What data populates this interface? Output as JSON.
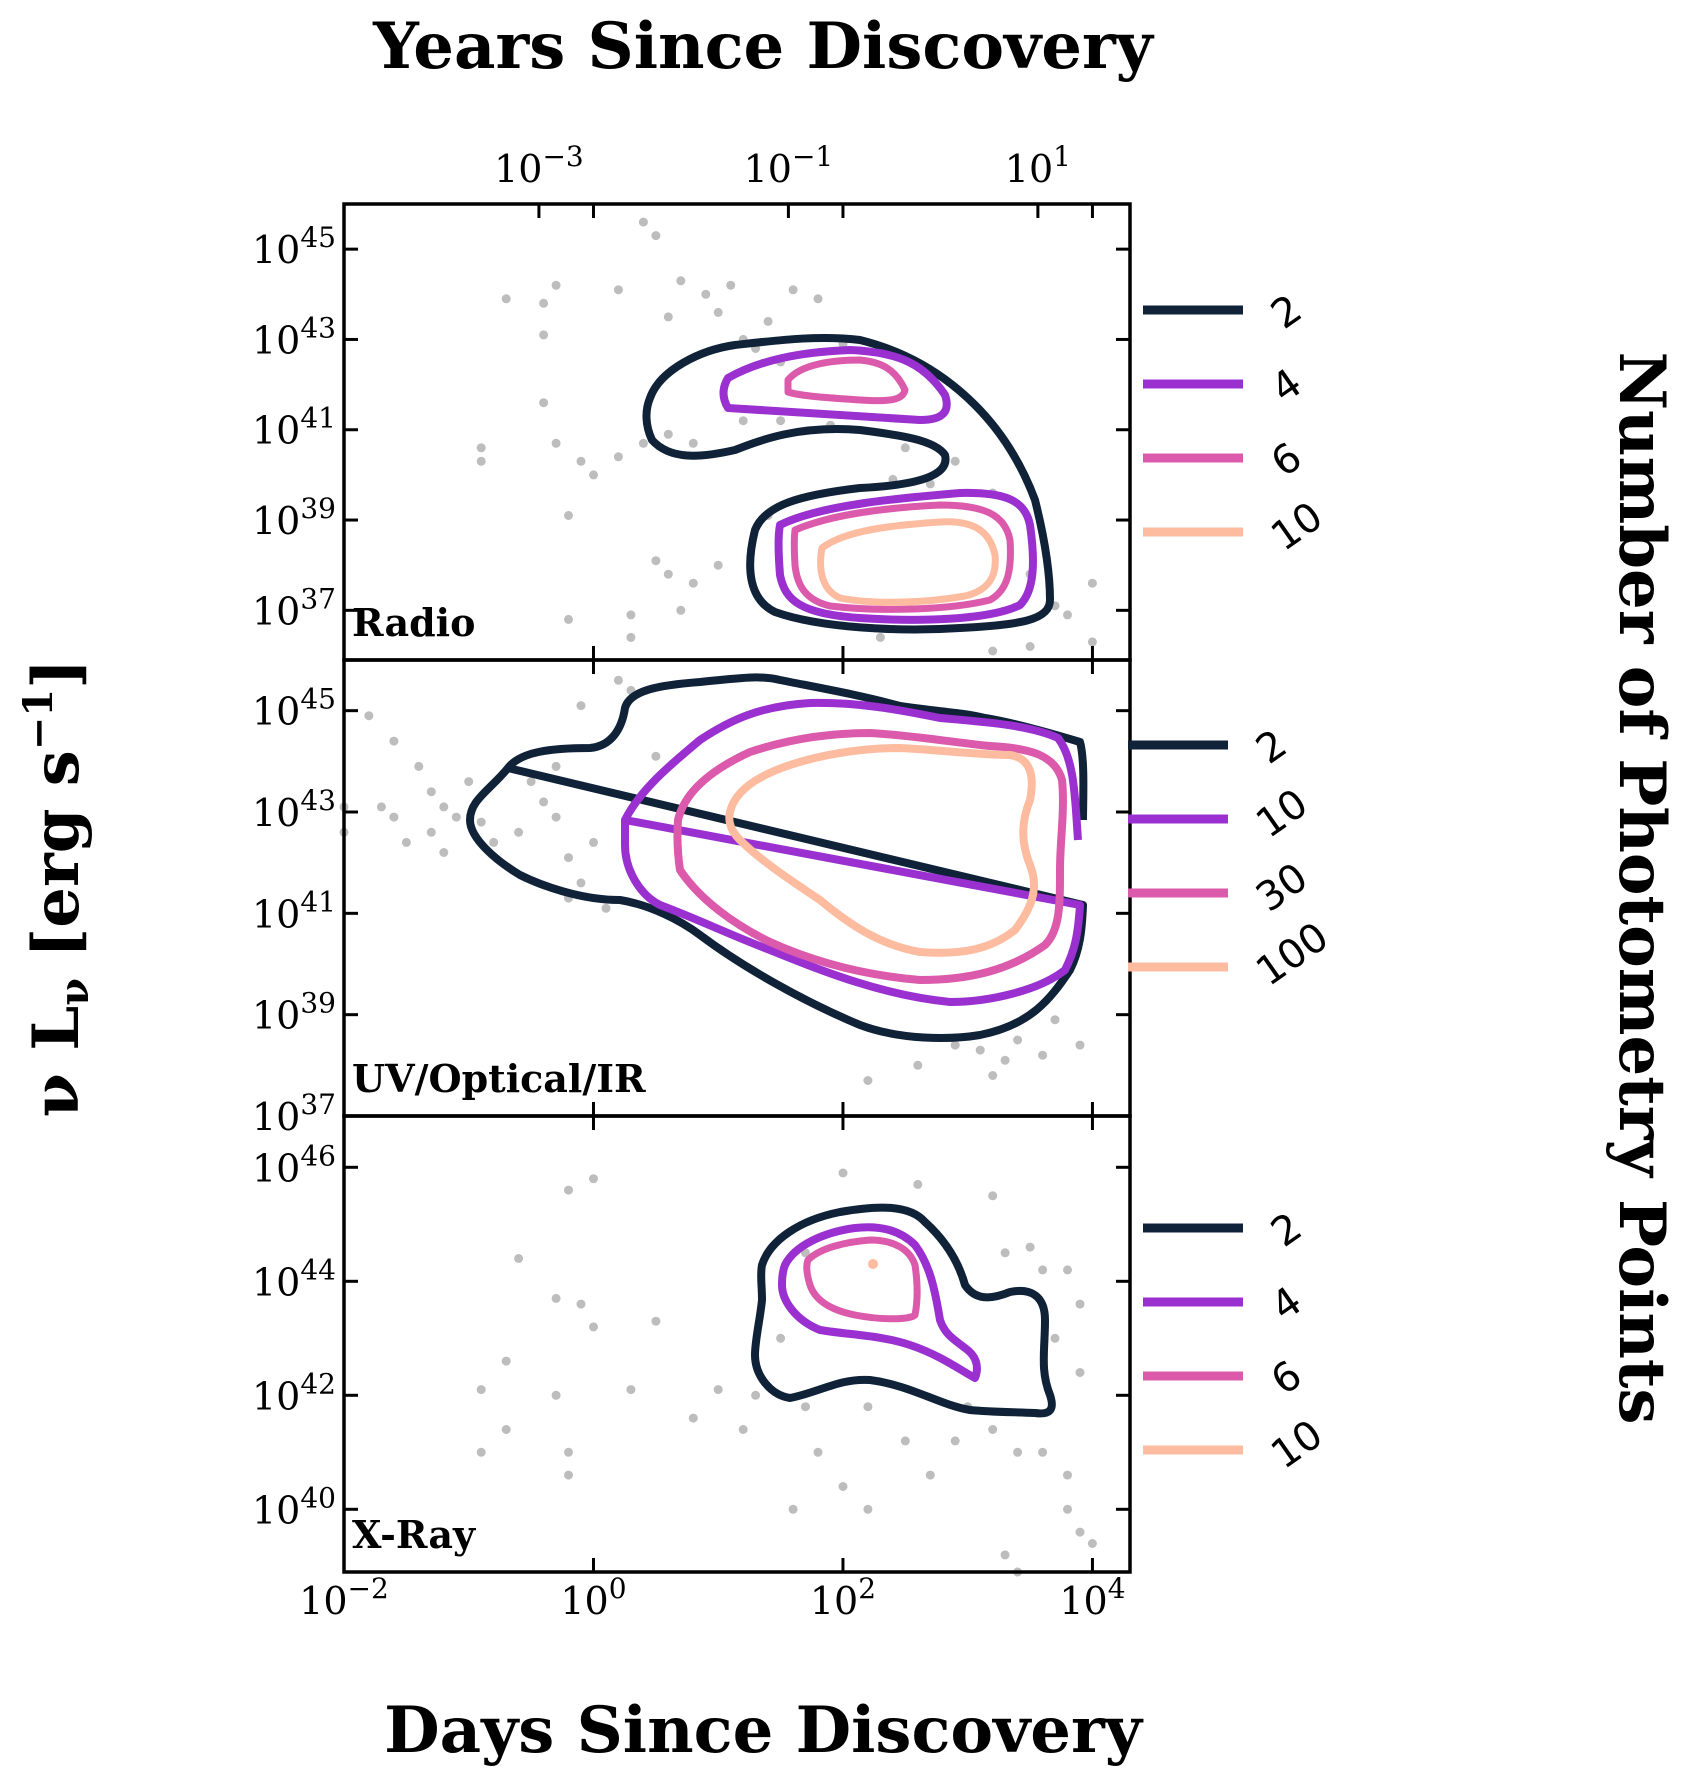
{
  "figure": {
    "top_xlabel": "Years Since Discovery",
    "bottom_xlabel": "Days Since Discovery",
    "ylabel_main": "ν L",
    "ylabel_sub": "ν",
    "ylabel_unit": "[erg s",
    "ylabel_exp": "−1",
    "ylabel_close": "]",
    "colorbar_label": "Number of Photometry Points",
    "contour_colors": {
      "level1": "#0f2238",
      "level2": "#9b30d0",
      "level3": "#dc5aab",
      "level4": "#fdbca0"
    },
    "scatter_color": "#bdbdbd"
  },
  "chart_data": [
    {
      "type": "scatter",
      "name": "Radio",
      "panel_label": "Radio",
      "x_scale": "log",
      "y_scale": "log",
      "xlim": [
        0.01,
        20000
      ],
      "ylim_log10": [
        35.9,
        46
      ],
      "top_axis": {
        "label": "Years Since Discovery",
        "tick_exponents": [
          -3,
          -1,
          1
        ],
        "tick_base": "10"
      },
      "bottom_axis": {
        "tick_exponents": [
          -2,
          0,
          2,
          4
        ],
        "tick_base": "10"
      },
      "y_tick_exponents": [
        37,
        39,
        41,
        43,
        45
      ],
      "contour_levels": [
        2,
        4,
        6,
        10
      ],
      "legend_labels": [
        "2",
        "4",
        "6",
        "10"
      ],
      "scatter_points_log10": [
        [
          -0.7,
          43.9
        ],
        [
          0.4,
          45.6
        ],
        [
          0.5,
          45.3
        ],
        [
          0.7,
          44.3
        ],
        [
          0.9,
          44.0
        ],
        [
          1.1,
          44.2
        ],
        [
          1.0,
          43.6
        ],
        [
          1.2,
          43.0
        ],
        [
          1.4,
          43.4
        ],
        [
          1.3,
          42.8
        ],
        [
          1.5,
          42.5
        ],
        [
          1.6,
          44.1
        ],
        [
          1.8,
          43.9
        ],
        [
          2.0,
          42.9
        ],
        [
          0.6,
          43.5
        ],
        [
          0.2,
          44.1
        ],
        [
          -0.3,
          44.2
        ],
        [
          -0.4,
          43.8
        ],
        [
          -0.4,
          43.1
        ],
        [
          -0.4,
          41.6
        ],
        [
          -0.3,
          40.7
        ],
        [
          -0.1,
          40.3
        ],
        [
          0.0,
          40.0
        ],
        [
          0.2,
          40.4
        ],
        [
          0.4,
          40.7
        ],
        [
          0.6,
          40.9
        ],
        [
          0.8,
          40.7
        ],
        [
          1.2,
          41.2
        ],
        [
          1.5,
          41.2
        ],
        [
          1.9,
          41.1
        ],
        [
          -0.9,
          40.6
        ],
        [
          -0.9,
          40.3
        ],
        [
          -0.2,
          39.1
        ],
        [
          0.5,
          38.1
        ],
        [
          0.6,
          37.8
        ],
        [
          0.8,
          37.6
        ],
        [
          1.0,
          38.0
        ],
        [
          0.7,
          37.0
        ],
        [
          0.3,
          36.9
        ],
        [
          -0.2,
          36.8
        ],
        [
          0.3,
          36.4
        ],
        [
          2.5,
          40.6
        ],
        [
          2.9,
          40.3
        ],
        [
          3.2,
          39.6
        ],
        [
          3.5,
          37.8
        ],
        [
          3.7,
          37.1
        ],
        [
          3.8,
          36.9
        ],
        [
          4.0,
          37.6
        ],
        [
          4.0,
          36.3
        ],
        [
          3.2,
          36.1
        ],
        [
          3.5,
          36.2
        ],
        [
          2.3,
          36.4
        ],
        [
          1.4,
          39.1
        ],
        [
          2.4,
          39.9
        ],
        [
          2.7,
          39.8
        ]
      ]
    },
    {
      "type": "scatter",
      "name": "UV/Optical/IR",
      "panel_label": "UV/Optical/IR",
      "x_scale": "log",
      "y_scale": "log",
      "xlim": [
        0.01,
        20000
      ],
      "ylim_log10": [
        37,
        46
      ],
      "bottom_axis": {
        "tick_exponents": [
          -2,
          0,
          2,
          4
        ],
        "tick_base": "10"
      },
      "y_tick_exponents": [
        37,
        39,
        41,
        43,
        45
      ],
      "contour_levels": [
        2,
        10,
        30,
        100
      ],
      "legend_labels": [
        "2",
        "10",
        "30",
        "100"
      ],
      "scatter_points_log10": [
        [
          -1.8,
          44.9
        ],
        [
          -1.6,
          44.4
        ],
        [
          -1.4,
          43.9
        ],
        [
          -1.3,
          43.4
        ],
        [
          -1.2,
          43.1
        ],
        [
          -1.1,
          42.9
        ],
        [
          -1.3,
          42.6
        ],
        [
          -1.5,
          42.4
        ],
        [
          -1.0,
          43.6
        ],
        [
          -0.9,
          42.8
        ],
        [
          -0.8,
          42.4
        ],
        [
          -1.7,
          43.1
        ],
        [
          -0.6,
          42.6
        ],
        [
          -0.4,
          43.2
        ],
        [
          -0.3,
          43.9
        ],
        [
          -0.2,
          42.1
        ],
        [
          -0.1,
          41.6
        ],
        [
          0.0,
          42.4
        ],
        [
          -0.5,
          43.6
        ],
        [
          -0.3,
          42.9
        ],
        [
          -0.2,
          41.3
        ],
        [
          0.1,
          41.1
        ],
        [
          0.2,
          45.6
        ],
        [
          0.3,
          45.4
        ],
        [
          -0.1,
          45.1
        ],
        [
          0.5,
          44.1
        ],
        [
          -2.0,
          43.1
        ],
        [
          -2.0,
          42.6
        ],
        [
          -1.6,
          42.9
        ],
        [
          -1.2,
          42.2
        ],
        [
          2.9,
          38.4
        ],
        [
          3.1,
          38.3
        ],
        [
          3.3,
          38.1
        ],
        [
          3.4,
          38.5
        ],
        [
          3.6,
          38.2
        ],
        [
          3.7,
          38.9
        ],
        [
          3.9,
          38.4
        ],
        [
          2.6,
          38.0
        ],
        [
          2.2,
          37.7
        ],
        [
          3.2,
          37.8
        ]
      ]
    },
    {
      "type": "scatter",
      "name": "X-Ray",
      "panel_label": "X-Ray",
      "x_scale": "log",
      "y_scale": "log",
      "xlim": [
        0.01,
        20000
      ],
      "ylim_log10": [
        38.9,
        46.9
      ],
      "bottom_axis": {
        "tick_exponents": [
          -2,
          0,
          2,
          4
        ],
        "tick_base": "10"
      },
      "y_tick_exponents": [
        40,
        42,
        44,
        46
      ],
      "contour_levels": [
        2,
        4,
        6,
        10
      ],
      "legend_labels": [
        "2",
        "4",
        "6",
        "10"
      ],
      "scatter_points_log10": [
        [
          -0.6,
          44.4
        ],
        [
          -0.7,
          42.6
        ],
        [
          -0.7,
          41.4
        ],
        [
          -0.9,
          42.1
        ],
        [
          -0.9,
          41.0
        ],
        [
          -0.3,
          42.0
        ],
        [
          -0.2,
          41.0
        ],
        [
          -0.2,
          40.6
        ],
        [
          -0.2,
          45.6
        ],
        [
          0.0,
          45.8
        ],
        [
          -0.1,
          43.6
        ],
        [
          0.0,
          43.2
        ],
        [
          0.5,
          43.3
        ],
        [
          -0.3,
          43.7
        ],
        [
          0.3,
          42.1
        ],
        [
          1.0,
          42.1
        ],
        [
          1.3,
          42.0
        ],
        [
          1.7,
          41.8
        ],
        [
          1.2,
          41.4
        ],
        [
          1.5,
          43.0
        ],
        [
          1.7,
          44.5
        ],
        [
          2.6,
          45.7
        ],
        [
          2.0,
          45.9
        ],
        [
          3.2,
          45.5
        ],
        [
          3.3,
          44.5
        ],
        [
          3.5,
          44.6
        ],
        [
          3.6,
          44.2
        ],
        [
          3.8,
          44.2
        ],
        [
          3.9,
          43.6
        ],
        [
          3.0,
          41.8
        ],
        [
          3.2,
          41.4
        ],
        [
          3.4,
          41.0
        ],
        [
          3.6,
          41.0
        ],
        [
          3.8,
          40.6
        ],
        [
          3.8,
          40.0
        ],
        [
          3.9,
          39.6
        ],
        [
          4.0,
          39.4
        ],
        [
          2.2,
          40.0
        ],
        [
          2.0,
          40.4
        ],
        [
          1.6,
          40.0
        ],
        [
          2.7,
          40.6
        ],
        [
          2.5,
          41.2
        ],
        [
          1.8,
          41.0
        ],
        [
          0.8,
          41.6
        ],
        [
          2.2,
          41.8
        ],
        [
          2.9,
          41.2
        ],
        [
          3.3,
          39.2
        ],
        [
          3.4,
          38.9
        ],
        [
          3.7,
          43.0
        ],
        [
          3.9,
          42.4
        ]
      ]
    }
  ]
}
